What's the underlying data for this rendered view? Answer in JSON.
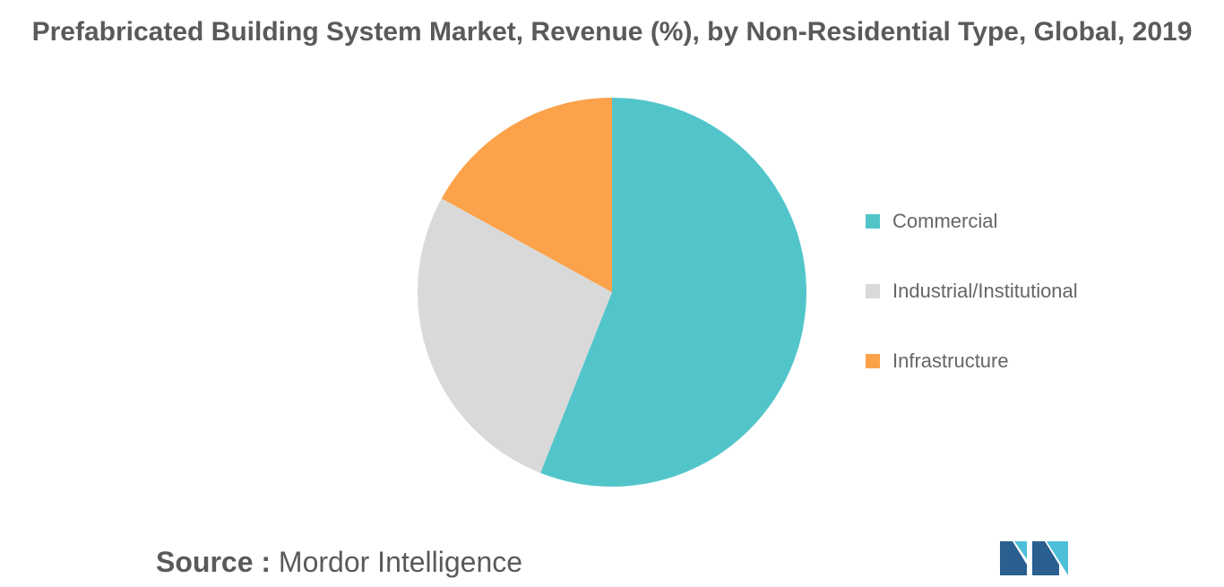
{
  "chart_data": {
    "type": "pie",
    "title": "Prefabricated Building System Market, Revenue (%), by Non-Residential Type, Global, 2019",
    "slices": [
      {
        "label": "Commercial",
        "value": 56,
        "color": "#52c5ca"
      },
      {
        "label": "Industrial/Institutional",
        "value": 27,
        "color": "#d9d9d9"
      },
      {
        "label": "Infrastructure",
        "value": 17,
        "color": "#fba24b"
      }
    ],
    "start_angle_deg": 0,
    "direction": "clockwise",
    "legend_position": "right"
  },
  "source": {
    "key": "Source :",
    "value": "Mordor Intelligence"
  },
  "logo": {
    "icon": "mordor-intelligence-logo",
    "colors": [
      "#2a5f8f",
      "#4dbfd9"
    ]
  }
}
